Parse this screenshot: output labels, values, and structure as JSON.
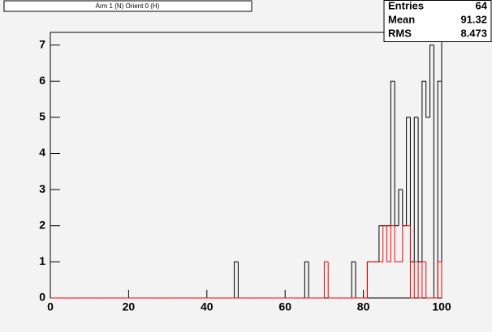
{
  "chart_data": {
    "type": "histogram",
    "title": "Arm 1 (N) Orient 0 (H)",
    "stats": {
      "labels": [
        "Entries",
        "Mean",
        "RMS"
      ],
      "values": [
        64,
        91.32,
        8.473
      ]
    },
    "bins": [
      0,
      1,
      2,
      3,
      4,
      5,
      6,
      7,
      8,
      9,
      10,
      11,
      12,
      13,
      14,
      15,
      16,
      17,
      18,
      19,
      20,
      21,
      22,
      23,
      24,
      25,
      26,
      27,
      28,
      29,
      30,
      31,
      32,
      33,
      34,
      35,
      36,
      37,
      38,
      39,
      40,
      41,
      42,
      43,
      44,
      45,
      46,
      47,
      48,
      49,
      50,
      51,
      52,
      53,
      54,
      55,
      56,
      57,
      58,
      59,
      60,
      61,
      62,
      63,
      64,
      65,
      66,
      67,
      68,
      69,
      70,
      71,
      72,
      73,
      74,
      75,
      76,
      77,
      78,
      79,
      80,
      81,
      82,
      83,
      84,
      85,
      86,
      87,
      88,
      89,
      90,
      91,
      92,
      93,
      94,
      95,
      96,
      97,
      98,
      99,
      100
    ],
    "series": [
      {
        "color": "#000000",
        "values": [
          0,
          0,
          0,
          0,
          0,
          0,
          0,
          0,
          0,
          0,
          0,
          0,
          0,
          0,
          0,
          0,
          0,
          0,
          0,
          0,
          0,
          0,
          0,
          0,
          0,
          0,
          0,
          0,
          0,
          0,
          0,
          0,
          0,
          0,
          0,
          0,
          0,
          0,
          0,
          0,
          0,
          0,
          0,
          0,
          0,
          0,
          0,
          1,
          0,
          0,
          0,
          0,
          0,
          0,
          0,
          0,
          0,
          0,
          0,
          0,
          0,
          0,
          0,
          0,
          0,
          1,
          0,
          0,
          0,
          0,
          0,
          0,
          0,
          0,
          0,
          0,
          0,
          1,
          0,
          0,
          0,
          1,
          1,
          1,
          2,
          2,
          2,
          6,
          2,
          3,
          2,
          5,
          1,
          5,
          1,
          6,
          5,
          7,
          0,
          6
        ]
      },
      {
        "color": "#ff0000",
        "values": [
          0,
          0,
          0,
          0,
          0,
          0,
          0,
          0,
          0,
          0,
          0,
          0,
          0,
          0,
          0,
          0,
          0,
          0,
          0,
          0,
          0,
          0,
          0,
          0,
          0,
          0,
          0,
          0,
          0,
          0,
          0,
          0,
          0,
          0,
          0,
          0,
          0,
          0,
          0,
          0,
          0,
          0,
          0,
          0,
          0,
          0,
          0,
          0,
          0,
          0,
          0,
          0,
          0,
          0,
          0,
          0,
          0,
          0,
          0,
          0,
          0,
          0,
          0,
          0,
          0,
          0,
          0,
          0,
          0,
          0,
          1,
          0,
          0,
          0,
          0,
          0,
          0,
          0,
          0,
          0,
          0,
          1,
          1,
          1,
          1,
          2,
          1,
          2,
          1,
          1,
          2,
          2,
          0,
          1,
          0,
          1,
          0,
          0,
          0,
          1
        ]
      }
    ],
    "xlim": [
      0,
      100
    ],
    "xticks": [
      0,
      20,
      40,
      60,
      80,
      100
    ],
    "ylim": [
      0,
      7.35
    ],
    "yticks": [
      0,
      1,
      2,
      3,
      4,
      5,
      6,
      7
    ]
  }
}
